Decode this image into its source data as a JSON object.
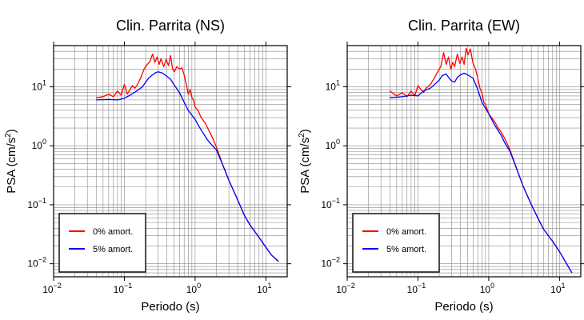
{
  "chart_data": [
    {
      "type": "line",
      "title": "Clin. Parrita (NS)",
      "xlabel": "Periodo (s)",
      "ylabel_base": "PSA (cm/s",
      "ylabel_sup": "2",
      "ylabel_close": ")",
      "xscale": "log",
      "yscale": "log",
      "xlim": [
        0.01,
        20
      ],
      "ylim": [
        0.006,
        50
      ],
      "grid": true,
      "legend_position": "lower-left",
      "x_ticks": [
        {
          "base": "10",
          "exp": "−2",
          "value": 0.01
        },
        {
          "base": "10",
          "exp": "−1",
          "value": 0.1
        },
        {
          "base": "10",
          "exp": "0",
          "value": 1
        },
        {
          "base": "10",
          "exp": "1",
          "value": 10
        }
      ],
      "y_ticks": [
        {
          "base": "10",
          "exp": "−2",
          "value": 0.01
        },
        {
          "base": "10",
          "exp": "−1",
          "value": 0.1
        },
        {
          "base": "10",
          "exp": "0",
          "value": 1
        },
        {
          "base": "10",
          "exp": "1",
          "value": 10
        }
      ],
      "series": [
        {
          "name": "0% amort.",
          "color": "#ff0000",
          "x": [
            0.04,
            0.05,
            0.06,
            0.07,
            0.08,
            0.09,
            0.1,
            0.11,
            0.12,
            0.13,
            0.14,
            0.15,
            0.17,
            0.19,
            0.21,
            0.23,
            0.25,
            0.27,
            0.29,
            0.31,
            0.33,
            0.36,
            0.39,
            0.42,
            0.45,
            0.48,
            0.51,
            0.55,
            0.6,
            0.65,
            0.7,
            0.75,
            0.8,
            0.85,
            0.9,
            0.95,
            1.0,
            1.1,
            1.2,
            1.3,
            1.4,
            1.5,
            1.7,
            2.0,
            2.5,
            3.0,
            4.0,
            5.0,
            6.0,
            8.0,
            10.0,
            12.0,
            15.0
          ],
          "y": [
            6.5,
            6.8,
            7.5,
            6.8,
            8.5,
            7.2,
            11.0,
            7.5,
            9.0,
            10.5,
            9.5,
            10.5,
            14.0,
            20.0,
            24.0,
            27.0,
            36.0,
            26.0,
            32.0,
            24.0,
            30.0,
            22.0,
            29.0,
            23.0,
            34.0,
            20.0,
            18.0,
            22.0,
            20.0,
            21.0,
            16.0,
            11.0,
            7.5,
            9.0,
            6.5,
            6.0,
            4.5,
            4.0,
            3.1,
            2.7,
            2.4,
            2.0,
            1.5,
            0.95,
            0.45,
            0.26,
            0.12,
            0.065,
            0.045,
            0.028,
            0.019,
            0.014,
            0.011
          ]
        },
        {
          "name": "5% amort.",
          "color": "#0000ff",
          "x": [
            0.04,
            0.06,
            0.08,
            0.1,
            0.12,
            0.15,
            0.18,
            0.2,
            0.22,
            0.25,
            0.28,
            0.3,
            0.35,
            0.4,
            0.45,
            0.5,
            0.6,
            0.7,
            0.8,
            1.0,
            1.2,
            1.5,
            1.7,
            2.0,
            2.5,
            3.0,
            4.0,
            5.0,
            6.0,
            8.0,
            10.0,
            12.0,
            15.0
          ],
          "y": [
            6.0,
            6.1,
            6.0,
            6.4,
            7.2,
            8.5,
            10.0,
            12.0,
            14.0,
            16.0,
            17.5,
            18.0,
            17.0,
            15.0,
            13.5,
            11.0,
            8.0,
            5.5,
            4.0,
            2.8,
            1.9,
            1.25,
            1.05,
            0.85,
            0.45,
            0.26,
            0.12,
            0.065,
            0.045,
            0.028,
            0.019,
            0.014,
            0.011
          ]
        }
      ]
    },
    {
      "type": "line",
      "title": "Clin. Parrita (EW)",
      "xlabel": "Periodo (s)",
      "ylabel_base": "PSA (cm/s",
      "ylabel_sup": "2",
      "ylabel_close": ")",
      "xscale": "log",
      "yscale": "log",
      "xlim": [
        0.01,
        20
      ],
      "ylim": [
        0.006,
        50
      ],
      "grid": true,
      "legend_position": "lower-left",
      "x_ticks": [
        {
          "base": "10",
          "exp": "−2",
          "value": 0.01
        },
        {
          "base": "10",
          "exp": "−1",
          "value": 0.1
        },
        {
          "base": "10",
          "exp": "0",
          "value": 1
        },
        {
          "base": "10",
          "exp": "1",
          "value": 10
        }
      ],
      "y_ticks": [
        {
          "base": "10",
          "exp": "−2",
          "value": 0.01
        },
        {
          "base": "10",
          "exp": "−1",
          "value": 0.1
        },
        {
          "base": "10",
          "exp": "0",
          "value": 1
        },
        {
          "base": "10",
          "exp": "1",
          "value": 10
        }
      ],
      "series": [
        {
          "name": "0% amort.",
          "color": "#ff0000",
          "x": [
            0.04,
            0.05,
            0.06,
            0.07,
            0.08,
            0.09,
            0.1,
            0.11,
            0.12,
            0.13,
            0.15,
            0.17,
            0.19,
            0.21,
            0.23,
            0.25,
            0.27,
            0.29,
            0.31,
            0.33,
            0.36,
            0.39,
            0.42,
            0.45,
            0.48,
            0.51,
            0.55,
            0.6,
            0.65,
            0.7,
            0.75,
            0.8,
            0.85,
            0.9,
            0.95,
            1.0,
            1.1,
            1.2,
            1.3,
            1.4,
            1.5,
            1.7,
            2.0,
            2.5,
            3.0,
            4.0,
            5.0,
            6.0,
            8.0,
            10.0,
            12.0,
            15.0
          ],
          "y": [
            8.5,
            7.0,
            8.0,
            6.8,
            8.5,
            7.0,
            10.5,
            9.0,
            8.0,
            9.5,
            11.0,
            14.0,
            18.0,
            22.0,
            38.0,
            24.0,
            32.0,
            20.0,
            26.0,
            22.0,
            36.0,
            25.0,
            32.0,
            24.0,
            45.0,
            35.0,
            44.0,
            25.0,
            20.0,
            14.0,
            9.5,
            8.0,
            5.5,
            5.0,
            4.2,
            3.5,
            3.0,
            2.6,
            2.2,
            1.9,
            1.7,
            1.3,
            0.85,
            0.4,
            0.22,
            0.1,
            0.058,
            0.038,
            0.024,
            0.016,
            0.011,
            0.007
          ]
        },
        {
          "name": "5% amort.",
          "color": "#0000ff",
          "x": [
            0.04,
            0.06,
            0.08,
            0.1,
            0.12,
            0.15,
            0.18,
            0.2,
            0.22,
            0.25,
            0.27,
            0.3,
            0.33,
            0.36,
            0.4,
            0.45,
            0.5,
            0.6,
            0.7,
            0.8,
            1.0,
            1.2,
            1.5,
            1.7,
            2.0,
            2.5,
            3.0,
            4.0,
            5.0,
            6.0,
            8.0,
            10.0,
            12.0,
            15.0
          ],
          "y": [
            6.5,
            6.8,
            7.2,
            7.0,
            8.5,
            9.5,
            11.5,
            13.0,
            15.5,
            16.5,
            14.5,
            12.5,
            12.0,
            14.5,
            16.0,
            17.0,
            16.0,
            14.0,
            9.0,
            5.5,
            3.5,
            2.3,
            1.5,
            1.1,
            0.8,
            0.4,
            0.22,
            0.1,
            0.058,
            0.038,
            0.024,
            0.016,
            0.011,
            0.007
          ]
        }
      ]
    }
  ]
}
